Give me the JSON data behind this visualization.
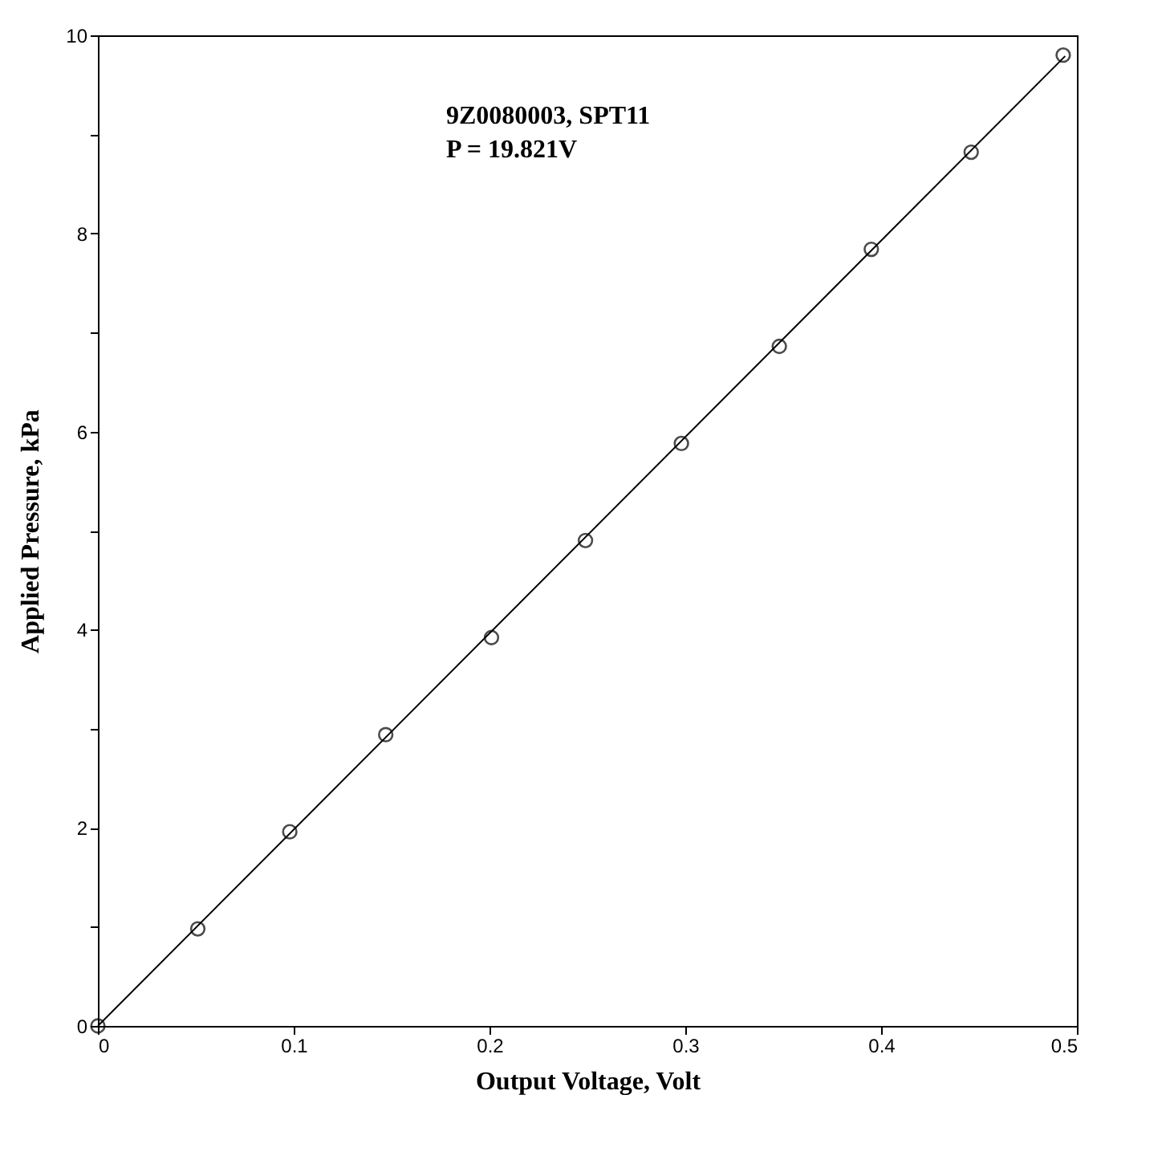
{
  "chart_data": {
    "type": "scatter",
    "xlabel": "Output Voltage, Volt",
    "ylabel": "Applied Pressure, kPa",
    "annotations": [
      "9Z0080003, SPT11",
      "P = 19.821V"
    ],
    "xlim": [
      0,
      0.5
    ],
    "xticks": [
      0,
      0.1,
      0.2,
      0.3,
      0.4,
      0.5
    ],
    "ylim": [
      0,
      10
    ],
    "yticks": [
      0,
      {
        "value": 1,
        "label": null
      },
      2,
      {
        "value": 3,
        "label": null
      },
      4,
      {
        "value": 5,
        "label": null
      },
      6,
      {
        "value": 7,
        "label": null
      },
      8,
      {
        "value": 9,
        "label": null
      },
      10
    ],
    "grid": false,
    "series": [
      {
        "color": "#000000",
        "marker": "circle",
        "x": [
          0,
          0.051,
          0.098,
          0.147,
          0.201,
          0.249,
          0.298,
          0.348,
          0.395,
          0.446,
          0.493
        ],
        "values": [
          0,
          0.98,
          1.96,
          2.94,
          3.92,
          4.9,
          5.88,
          6.86,
          7.84,
          8.82,
          9.8
        ]
      },
      {
        "type": "line",
        "color": "#000000",
        "line_style": "solid",
        "x": [
          0,
          0.494
        ],
        "values": [
          0,
          9.79
        ]
      }
    ]
  }
}
